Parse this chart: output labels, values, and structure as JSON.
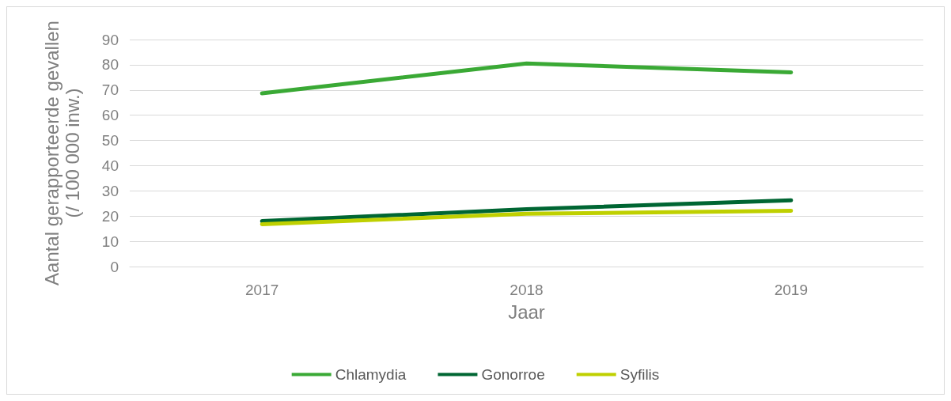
{
  "chart_data": {
    "type": "line",
    "xlabel": "Jaar",
    "ylabel": "Aantal gerapporteerde gevallen\n(/ 100 000 inw.)",
    "categories": [
      "2017",
      "2018",
      "2019"
    ],
    "series": [
      {
        "name": "Chlamydia",
        "color": "#3aa935",
        "values": [
          68.7,
          80.5,
          77.0
        ]
      },
      {
        "name": "Gonorroe",
        "color": "#006633",
        "values": [
          18.0,
          22.7,
          26.3
        ]
      },
      {
        "name": "Syfilis",
        "color": "#bfd000",
        "values": [
          16.8,
          20.9,
          22.1
        ]
      }
    ],
    "ylim": [
      0,
      90
    ],
    "yticks": [
      0,
      10,
      20,
      30,
      40,
      50,
      60,
      70,
      80,
      90
    ],
    "grid": "y",
    "legend": "bottom",
    "marker": "none",
    "line_style": "solid"
  }
}
